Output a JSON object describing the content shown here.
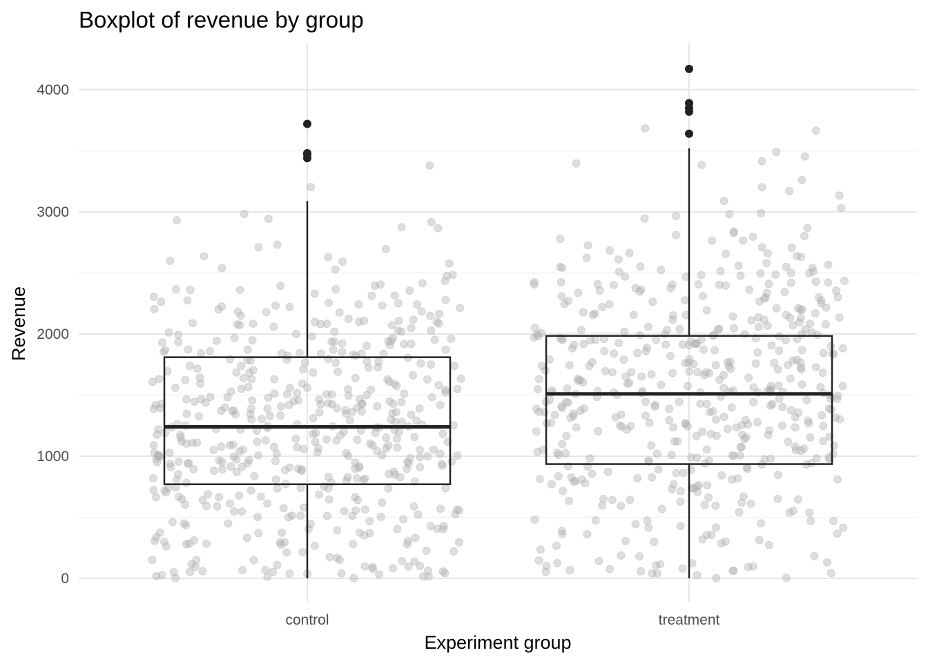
{
  "chart_data": {
    "type": "boxplot",
    "title": "Boxplot of revenue by group",
    "xlabel": "Experiment group",
    "ylabel": "Revenue",
    "ylim": [
      -180,
      4400
    ],
    "yticks": [
      0,
      1000,
      2000,
      3000,
      4000
    ],
    "y_minor_gridlines": true,
    "grid": true,
    "legend": "none",
    "jitter_points": true,
    "colors": {
      "box": "#222222",
      "outlier": "#222222",
      "jitter": "#b8b3b3",
      "grid_major": "#e6e6e6",
      "grid_minor": "#f2f2f2",
      "tick_text": "#4d4d4d"
    },
    "categories": [
      "control",
      "treatment"
    ],
    "boxes": [
      {
        "name": "control",
        "whisker_low": 0,
        "q1": 770,
        "median": 1240,
        "q3": 1810,
        "whisker_high": 3090,
        "outliers": [
          3440,
          3470,
          3480,
          3720
        ]
      },
      {
        "name": "treatment",
        "whisker_low": 0,
        "q1": 935,
        "median": 1510,
        "q3": 1985,
        "whisker_high": 3520,
        "outliers": [
          3640,
          3820,
          3850,
          3890,
          4170
        ]
      }
    ]
  }
}
